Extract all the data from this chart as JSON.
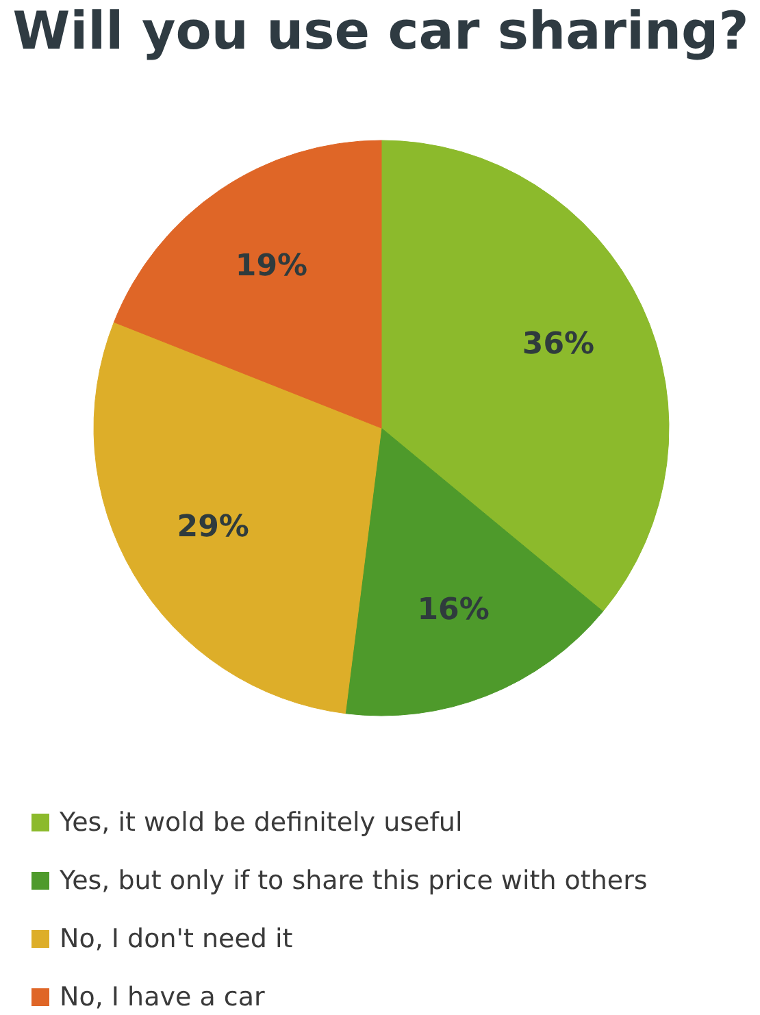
{
  "chart_data": {
    "type": "pie",
    "title": "Will you use car sharing?",
    "categories": [
      "Yes, it wold be definitely useful",
      "Yes, but only if to share this price with others",
      "No, I don't need it",
      "No, I have a car"
    ],
    "values": [
      36,
      16,
      29,
      19
    ],
    "colors": [
      "#8cba2c",
      "#4e9a2b",
      "#ddae29",
      "#df6627"
    ],
    "value_labels": [
      "36%",
      "16%",
      "29%",
      "19%"
    ],
    "legend": "bottom"
  }
}
